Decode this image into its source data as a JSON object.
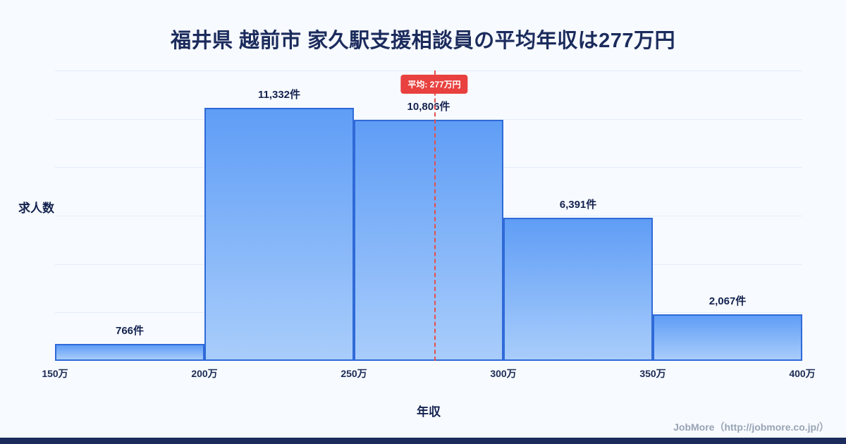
{
  "title": "福井県 越前市 家久駅支援相談員の平均年収は277万円",
  "chart_data": {
    "type": "bar",
    "title": "福井県 越前市 家久駅支援相談員の平均年収は277万円",
    "categories": [
      "150万-200万",
      "200万-250万",
      "250万-300万",
      "300万-350万",
      "350万-400万"
    ],
    "values": [
      766,
      11332,
      10806,
      6391,
      2067
    ],
    "value_labels": [
      "766件",
      "11,332件",
      "10,806件",
      "6,391件",
      "2,067件"
    ],
    "x_ticks": [
      "150万",
      "200万",
      "250万",
      "300万",
      "350万",
      "400万"
    ],
    "x_range": [
      150,
      400
    ],
    "ylim": [
      0,
      13000
    ],
    "xlabel": "年収",
    "ylabel": "求人数",
    "grid": "horizontal",
    "legend": "none",
    "average": {
      "label": "平均: 277万円",
      "value": 277
    }
  },
  "footer": {
    "credit": "JobMore（http://jobmore.co.jp/）"
  },
  "colors": {
    "background": "#f7faff",
    "title_text": "#1b2b5c",
    "bar_border": "#2f6ad8",
    "bar_fill_top": "#5f9df6",
    "bar_fill_bottom": "#a9cdfb",
    "average_line": "#e4504e",
    "average_badge_bg": "#e8413f",
    "average_badge_text": "#ffffff",
    "gridline": "#e3edf8",
    "footer_text": "#98a4b5",
    "bottom_bar": "#1b2b5c"
  }
}
